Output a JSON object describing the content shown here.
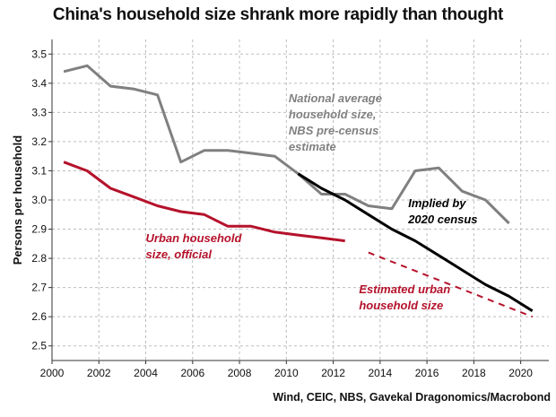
{
  "chart_data": {
    "type": "line",
    "title": "China's household size shrank more rapidly than thought",
    "xlabel": "",
    "ylabel": "Persons per household",
    "xlim": [
      2000,
      2021.2
    ],
    "ylim": [
      2.45,
      3.55
    ],
    "x_ticks": [
      2000,
      2002,
      2004,
      2006,
      2008,
      2010,
      2012,
      2014,
      2016,
      2018,
      2020
    ],
    "y_ticks": [
      2.5,
      2.6,
      2.7,
      2.8,
      2.9,
      3.0,
      3.1,
      3.2,
      3.3,
      3.4,
      3.5
    ],
    "grid": true,
    "series": [
      {
        "id": "national",
        "color": "#808080",
        "style": "solid",
        "x": [
          2000.5,
          2001.5,
          2002.5,
          2003.5,
          2004.5,
          2005.5,
          2006.5,
          2007.5,
          2008.5,
          2009.5,
          2010.5,
          2011.5,
          2012.5,
          2013.5,
          2014.5,
          2015.5,
          2016.5,
          2017.5,
          2018.5,
          2019.5
        ],
        "y": [
          3.44,
          3.46,
          3.39,
          3.38,
          3.36,
          3.13,
          3.17,
          3.17,
          3.16,
          3.15,
          3.09,
          3.02,
          3.02,
          2.98,
          2.97,
          3.1,
          3.11,
          3.03,
          3.0,
          2.92
        ]
      },
      {
        "id": "urban-official",
        "color": "#b5122b",
        "style": "solid",
        "x": [
          2000.5,
          2001.5,
          2002.5,
          2003.5,
          2004.5,
          2005.5,
          2006.5,
          2007.5,
          2008.5,
          2009.5,
          2010.5,
          2011.5,
          2012.5
        ],
        "y": [
          3.13,
          3.1,
          3.04,
          3.01,
          2.98,
          2.96,
          2.95,
          2.91,
          2.91,
          2.89,
          2.88,
          2.87,
          2.86
        ]
      },
      {
        "id": "census-implied",
        "color": "#000000",
        "style": "solid",
        "x": [
          2010.5,
          2011.5,
          2012.5,
          2013.5,
          2014.5,
          2015.5,
          2016.5,
          2017.5,
          2018.5,
          2019.5,
          2020.5
        ],
        "y": [
          3.09,
          3.04,
          3.0,
          2.95,
          2.9,
          2.86,
          2.81,
          2.76,
          2.71,
          2.67,
          2.62
        ]
      },
      {
        "id": "urban-estimated",
        "color": "#b5122b",
        "style": "dashed",
        "x": [
          2013.5,
          2020.5
        ],
        "y": [
          2.82,
          2.6
        ]
      }
    ],
    "annotations": [
      {
        "id": "national",
        "lines": [
          "National average",
          "household size,",
          "NBS pre-census",
          "estimate"
        ],
        "color": "#808080",
        "x": 2010.1,
        "y": 3.335
      },
      {
        "id": "census",
        "lines": [
          "Implied by",
          "2020 census"
        ],
        "color": "#000000",
        "x": 2015.2,
        "y": 2.975
      },
      {
        "id": "urban-official",
        "lines": [
          "Urban household",
          "size, official"
        ],
        "color": "#b5122b",
        "x": 2004.0,
        "y": 2.855
      },
      {
        "id": "urban-estimated",
        "lines": [
          "Estimated urban",
          "household size"
        ],
        "color": "#b5122b",
        "x": 2013.1,
        "y": 2.68
      }
    ],
    "source": "Wind, CEIC, NBS, Gavekal Dragonomics/Macrobond"
  }
}
